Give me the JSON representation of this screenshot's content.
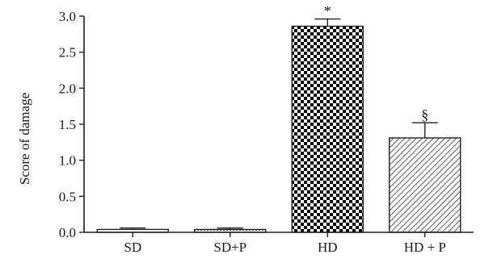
{
  "chart_data": {
    "type": "bar",
    "title": "",
    "xlabel": "",
    "ylabel": "Score of damage",
    "ylim": [
      0,
      3.0
    ],
    "yticks": [
      "0.0",
      "0.5",
      "1.0",
      "1.5",
      "2.0",
      "2.5",
      "3.0"
    ],
    "grid": false,
    "categories": [
      "SD",
      "SD+P",
      "HD",
      "HD + P"
    ],
    "values": [
      0.04,
      0.04,
      2.86,
      1.31
    ],
    "error": [
      0.02,
      0.02,
      0.1,
      0.21
    ],
    "fills": [
      "white",
      "dots",
      "checker",
      "hatch"
    ],
    "annotations": [
      "",
      "",
      "*",
      "§"
    ]
  }
}
